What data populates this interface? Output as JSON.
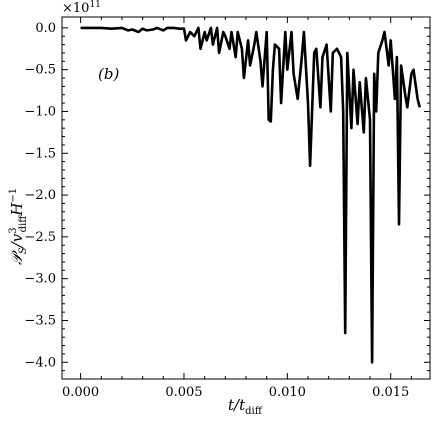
{
  "chart_data": {
    "type": "line",
    "panel_label": "(b)",
    "xlabel": "t/t_diff",
    "ylabel": "P_S/v_diff^3 H^-1",
    "y_multiplier": "×10^11",
    "xlim": [
      -0.0009,
      0.0169
    ],
    "ylim": [
      -4.2,
      0.13
    ],
    "xticks": [
      0.0,
      0.005,
      0.01,
      0.015
    ],
    "xtick_labels": [
      "0.000",
      "0.005",
      "0.010",
      "0.015"
    ],
    "yticks": [
      0.0,
      -0.5,
      -1.0,
      -1.5,
      -2.0,
      -2.5,
      -3.0,
      -3.5,
      -4.0
    ],
    "ytick_labels": [
      "0.0",
      "−0.5",
      "−1.0",
      "−1.5",
      "−2.0",
      "−2.5",
      "−3.0",
      "−3.5",
      "−4.0"
    ],
    "series": [
      {
        "color": "#000000",
        "x": [
          0.0,
          0.0005,
          0.001,
          0.0015,
          0.002,
          0.0023,
          0.0025,
          0.0028,
          0.003,
          0.0032,
          0.0035,
          0.0037,
          0.004,
          0.0042,
          0.0045,
          0.0048,
          0.005,
          0.0051,
          0.0053,
          0.0055,
          0.0057,
          0.0058,
          0.006,
          0.0061,
          0.0063,
          0.0064,
          0.0066,
          0.0067,
          0.0069,
          0.007,
          0.0072,
          0.0073,
          0.0075,
          0.0076,
          0.0078,
          0.0079,
          0.0081,
          0.0082,
          0.0084,
          0.0085,
          0.0087,
          0.0088,
          0.009,
          0.0091,
          0.0092,
          0.0093,
          0.0094,
          0.0096,
          0.0097,
          0.0099,
          0.01,
          0.0102,
          0.0103,
          0.0105,
          0.0107,
          0.0108,
          0.011,
          0.0111,
          0.0113,
          0.0114,
          0.0116,
          0.0117,
          0.0119,
          0.0121,
          0.0122,
          0.0124,
          0.0126,
          0.0127,
          0.0128,
          0.0129,
          0.0131,
          0.0132,
          0.0134,
          0.0135,
          0.0137,
          0.0138,
          0.014,
          0.0141,
          0.0142,
          0.0143,
          0.0144,
          0.0146,
          0.0147,
          0.0149,
          0.015,
          0.0152,
          0.0153,
          0.0154,
          0.0155,
          0.0157,
          0.0158,
          0.016,
          0.0161,
          0.0163,
          0.0164
        ],
        "y": [
          0.0,
          0.0,
          0.0,
          -0.01,
          0.0,
          -0.03,
          -0.02,
          -0.05,
          -0.01,
          -0.03,
          -0.02,
          0.0,
          -0.03,
          0.0,
          0.0,
          -0.01,
          -0.01,
          -0.15,
          -0.05,
          -0.1,
          0.0,
          -0.25,
          -0.05,
          -0.15,
          0.0,
          -0.2,
          0.0,
          -0.3,
          -0.05,
          -0.1,
          -0.25,
          -0.05,
          -0.35,
          -0.05,
          -0.25,
          -0.6,
          -0.15,
          -0.45,
          -0.2,
          -0.05,
          -0.4,
          -0.7,
          -0.05,
          -1.1,
          -1.12,
          -0.5,
          -0.2,
          -0.25,
          -0.9,
          -0.05,
          -0.5,
          -0.05,
          -0.55,
          -0.85,
          -0.35,
          -0.05,
          -0.9,
          -1.65,
          -0.3,
          -0.25,
          -0.95,
          -0.35,
          -0.2,
          -1.0,
          -0.3,
          -0.25,
          -0.35,
          -1.0,
          -3.65,
          -0.3,
          -1.2,
          -0.5,
          -1.15,
          -0.65,
          -1.25,
          -0.6,
          -1.1,
          -4.0,
          -0.55,
          -1.0,
          -0.3,
          -0.15,
          -0.05,
          -0.45,
          -0.15,
          -0.85,
          -0.35,
          -2.35,
          -0.45,
          -0.8,
          -0.95,
          -0.55,
          -0.5,
          -0.85,
          -0.95
        ]
      }
    ],
    "grid": false
  }
}
